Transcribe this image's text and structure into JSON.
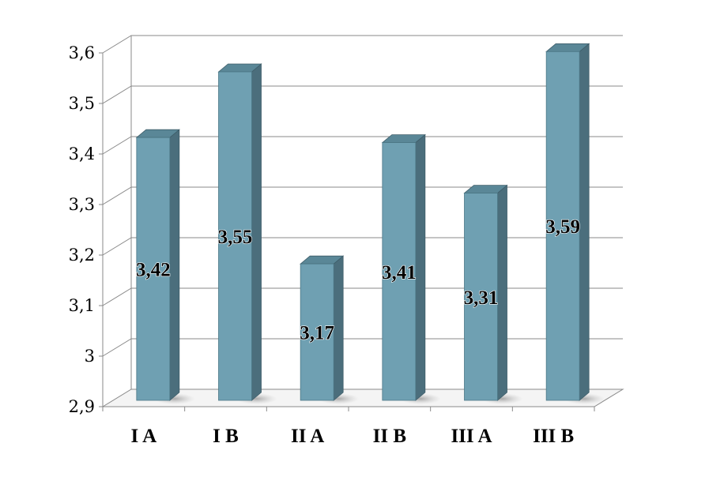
{
  "chart_data": {
    "type": "bar",
    "categories": [
      "I A",
      "I B",
      "II A",
      "II B",
      "III A",
      "III B"
    ],
    "values": [
      3.42,
      3.55,
      3.17,
      3.41,
      3.31,
      3.59
    ],
    "value_labels": [
      "3,42",
      "3,55",
      "3,17",
      "3,41",
      "3,31",
      "3,59"
    ],
    "ylim": [
      2.9,
      3.6
    ],
    "y_ticks": [
      2.9,
      3.0,
      3.1,
      3.2,
      3.3,
      3.4,
      3.5,
      3.6
    ],
    "y_tick_labels": [
      "2,9",
      "3",
      "3,1",
      "3,2",
      "3,3",
      "3,4",
      "3,5",
      "3,6"
    ],
    "title": "",
    "xlabel": "",
    "ylabel": "",
    "grid": true,
    "legend": "none",
    "colors": {
      "bar_front": "#6fa0b2",
      "bar_side": "#4b6e7c",
      "bar_top": "#5a8797",
      "grid": "#8a8a8a"
    }
  }
}
